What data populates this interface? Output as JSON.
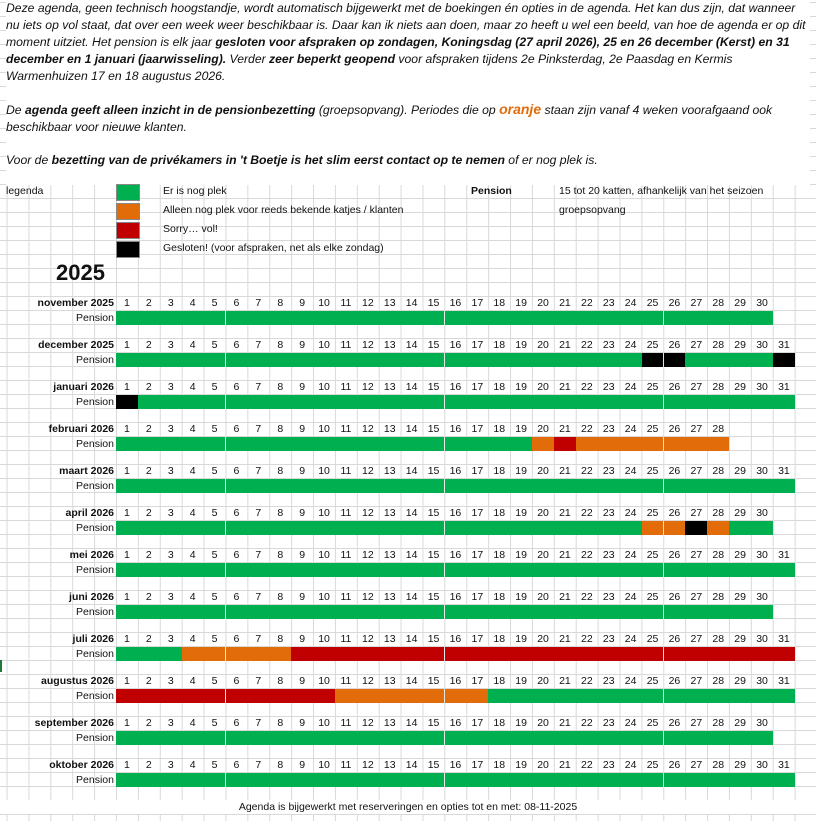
{
  "intro": {
    "p1_a": "Deze agenda, geen technisch hoogstandje, wordt automatisch bijgewerkt met de boekingen én opties in de agenda. Het kan dus zijn, dat wanneer nu iets op vol staat, dat over een week weer beschikbaar is. Daar kan ik niets aan doen, maar zo heeft u wel een beeld, van hoe de agenda er op dit moment uitziet. Het pension is elk jaar ",
    "p1_b": "gesloten voor afspraken op zondagen, Koningsdag (27 april 2026), 25 en 26 december (Kerst) en 31 december en 1 januari (jaarwisseling).",
    "p1_c": " Verder ",
    "p1_d": "zeer beperkt geopend",
    "p1_e": " voor afspraken tijdens 2e Pinksterdag, 2e Paasdag en Kermis Warmenhuizen 17 en 18 augustus 2026.",
    "p2_a": "De ",
    "p2_b": "agenda geeft alleen inzicht in de pensionbezetting",
    "p2_c": " (groepsopvang). Periodes die op ",
    "p2_d": "oranje",
    "p2_e": " staan zijn vanaf 4 weken voorafgaand ook beschikbaar voor nieuwe klanten.",
    "p3_a": "Voor de ",
    "p3_b": "bezetting van de privékamers in 't Boetje is het slim eerst contact op te nemen",
    "p3_c": " of er nog plek is."
  },
  "legend": {
    "title": "legenda",
    "items": [
      {
        "label": "Er is nog plek",
        "color": "#00b050"
      },
      {
        "label": "Alleen nog plek voor reeds bekende katjes / klanten",
        "color": "#e26b0a"
      },
      {
        "label": "Sorry… vol!",
        "color": "#c00000"
      },
      {
        "label": "Gesloten! (voor afspraken, net als elke zondag)",
        "color": "#000000"
      }
    ],
    "pension_title": "Pension",
    "pension_capacity": "15 tot 20 katten, afhankelijk van het seizoen",
    "pension_type": "groepsopvang"
  },
  "year": "2025",
  "row_label": "Pension",
  "months": [
    {
      "name": "november 2025",
      "days": 30,
      "segments": [
        [
          "free",
          1,
          30
        ]
      ]
    },
    {
      "name": "december 2025",
      "days": 31,
      "segments": [
        [
          "free",
          1,
          24
        ],
        [
          "closed",
          25,
          26
        ],
        [
          "free",
          27,
          30
        ],
        [
          "closed",
          31,
          31
        ]
      ]
    },
    {
      "name": "januari 2026",
      "days": 31,
      "segments": [
        [
          "closed",
          1,
          1
        ],
        [
          "free",
          2,
          31
        ]
      ]
    },
    {
      "name": "februari 2026",
      "days": 28,
      "segments": [
        [
          "free",
          1,
          19
        ],
        [
          "known",
          20,
          20
        ],
        [
          "full",
          21,
          21
        ],
        [
          "known",
          22,
          28
        ]
      ]
    },
    {
      "name": "maart 2026",
      "days": 31,
      "segments": [
        [
          "free",
          1,
          31
        ]
      ]
    },
    {
      "name": "april 2026",
      "days": 30,
      "segments": [
        [
          "free",
          1,
          24
        ],
        [
          "known",
          25,
          26
        ],
        [
          "closed",
          27,
          27
        ],
        [
          "known",
          28,
          28
        ],
        [
          "free",
          29,
          30
        ]
      ]
    },
    {
      "name": "mei 2026",
      "days": 31,
      "segments": [
        [
          "free",
          1,
          31
        ]
      ]
    },
    {
      "name": "juni 2026",
      "days": 30,
      "segments": [
        [
          "free",
          1,
          30
        ]
      ]
    },
    {
      "name": "juli 2026",
      "days": 31,
      "segments": [
        [
          "free",
          1,
          3
        ],
        [
          "known",
          4,
          8
        ],
        [
          "full",
          9,
          31
        ]
      ]
    },
    {
      "name": "augustus 2026",
      "days": 31,
      "segments": [
        [
          "full",
          1,
          10
        ],
        [
          "known",
          11,
          17
        ],
        [
          "free",
          18,
          31
        ]
      ]
    },
    {
      "name": "september 2026",
      "days": 30,
      "segments": [
        [
          "free",
          1,
          30
        ]
      ]
    },
    {
      "name": "oktober 2026",
      "days": 31,
      "segments": [
        [
          "free",
          1,
          31
        ]
      ]
    }
  ],
  "footer": "Agenda is bijgewerkt met reserveringen en opties tot en met: 08-11-2025"
}
